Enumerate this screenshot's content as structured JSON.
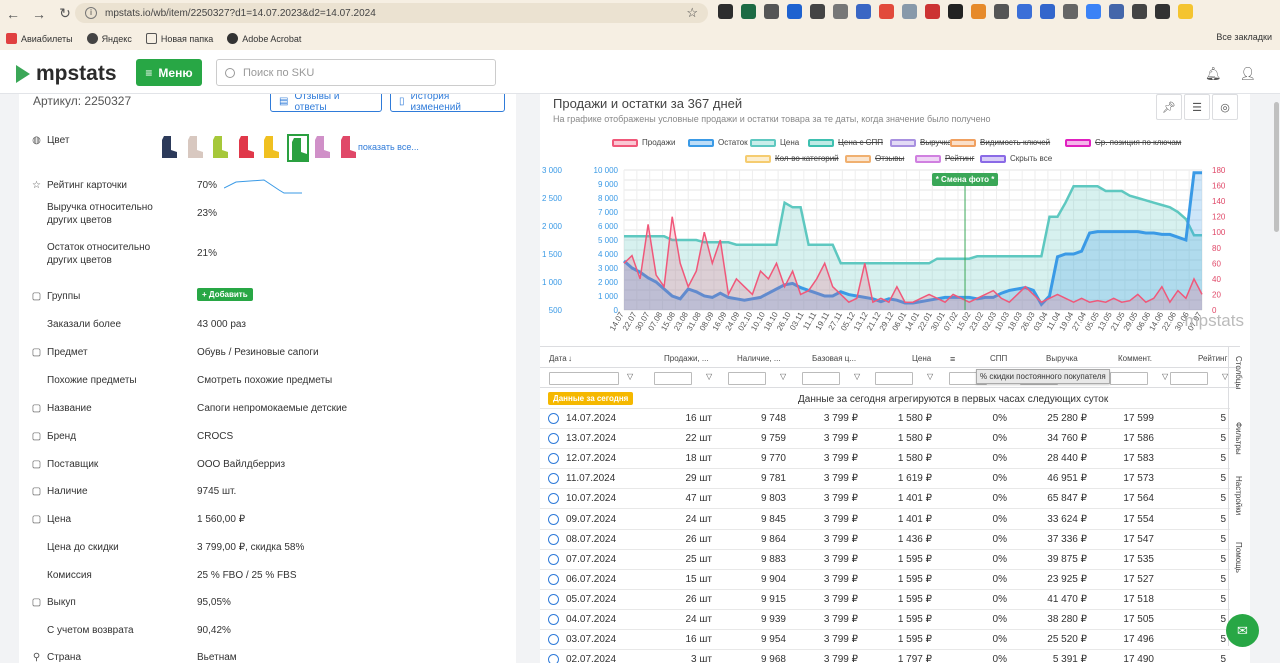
{
  "browser": {
    "url": "mpstats.io/wb/item/2250327?d1=14.07.2023&d2=14.07.2024",
    "bookmarks": [
      "Авиабилеты",
      "Яндекс",
      "Новая папка",
      "Adobe Acrobat"
    ],
    "all_bookmarks": "Все закладки"
  },
  "header": {
    "logo": "mpstats",
    "menu_label": "Меню",
    "search_placeholder": "Поиск по SKU"
  },
  "product": {
    "article": "Артикул: 2250327",
    "reviews_btn": "Отзывы и ответы",
    "history_btn": "История изменений",
    "color_label": "Цвет",
    "show_all": "показать все...",
    "rows": [
      {
        "label": "Рейтинг карточки",
        "value": "70%",
        "icon": "star-icon"
      },
      {
        "label": "Выручка относительно\nдругих цветов",
        "value": "23%"
      },
      {
        "label": "Остаток относительно\nдругих цветов",
        "value": "21%"
      },
      {
        "label": "Группы",
        "value": "+ Добавить",
        "icon": "layers-icon"
      },
      {
        "label": "Заказали более",
        "value": "43 000 раз"
      },
      {
        "label": "Предмет",
        "value": "Обувь / Резиновые сапоги",
        "icon": "box-icon"
      },
      {
        "label": "Похожие предметы",
        "value": "Смотреть похожие предметы"
      },
      {
        "label": "Название",
        "value": "Сапоги непромокаемые детские",
        "icon": "text-icon"
      },
      {
        "label": "Бренд",
        "value": "CROCS",
        "icon": "globe-icon"
      },
      {
        "label": "Поставщик",
        "value": "ООО Вайлдберриз",
        "icon": "truck-icon"
      },
      {
        "label": "Наличие",
        "value": "9745 шт.",
        "icon": "person-icon"
      },
      {
        "label": "Цена",
        "value": "1 560,00 ₽",
        "icon": "wallet-icon"
      },
      {
        "label": "Цена до скидки",
        "value": "3 799,00 ₽, скидка 58%"
      },
      {
        "label": "Комиссия",
        "value": "25 % FBO / 25 % FBS"
      },
      {
        "label": "Выкуп",
        "value": "95,05%",
        "icon": "cart-icon"
      },
      {
        "label": "С учетом возврата",
        "value": "90,42%"
      },
      {
        "label": "Страна",
        "value": "Вьетнам",
        "icon": "pin-icon"
      }
    ]
  },
  "chart": {
    "title": "Продажи и остатки за 367 дней",
    "subtitle": "На графике отображены условные продажи и остатки товара за те даты, когда значение было получено",
    "annotation": "* Смена фото *",
    "watermark": "mpstats",
    "legend": [
      {
        "name": "Продажи",
        "color": "#f0587a",
        "struck": false
      },
      {
        "name": "Остаток",
        "color": "#3a9ae6",
        "struck": false
      },
      {
        "name": "Цена",
        "color": "#5ec8c0",
        "struck": false
      },
      {
        "name": "Цена с СПП",
        "color": "#3ec0b0",
        "struck": true
      },
      {
        "name": "Выручка",
        "color": "#a890e0",
        "struck": true
      },
      {
        "name": "Видимость ключей",
        "color": "#f0a060",
        "struck": true
      },
      {
        "name": "Ср. позиция по ключам",
        "color": "#e020c0",
        "struck": true
      },
      {
        "name": "Кол-во категорий",
        "color": "#f5cc70",
        "struck": true
      },
      {
        "name": "Отзывы",
        "color": "#f0b070",
        "struck": true
      },
      {
        "name": "Рейтинг",
        "color": "#d080e0",
        "struck": true
      },
      {
        "name": "Скрыть все",
        "color": "#8a6ae6",
        "struck": false
      }
    ]
  },
  "chart_data": {
    "type": "line",
    "y_price_ticks": [
      "3 000",
      "2 500",
      "2 000",
      "1 500",
      "1 000",
      "500"
    ],
    "y_stock_ticks": [
      "10 000",
      "9 000",
      "8 000",
      "7 000",
      "6 000",
      "5 000",
      "4 000",
      "3 000",
      "2 000",
      "1 000",
      "0"
    ],
    "y_sales_ticks": [
      "180",
      "160",
      "140",
      "120",
      "100",
      "80",
      "60",
      "40",
      "20",
      "0"
    ],
    "x_ticks": [
      "14.07",
      "22.07",
      "30.07",
      "07.08",
      "15.08",
      "23.08",
      "31.08",
      "08.09",
      "16.09",
      "24.09",
      "02.10",
      "10.10",
      "18.10",
      "26.10",
      "03.11",
      "11.11",
      "19.11",
      "27.11",
      "05.12",
      "13.12",
      "21.12",
      "29.12",
      "06.01",
      "14.01",
      "22.01",
      "30.01",
      "07.02",
      "15.02",
      "23.02",
      "02.03",
      "10.03",
      "18.03",
      "26.03",
      "03.04",
      "11.04",
      "19.04",
      "27.04",
      "05.05",
      "13.05",
      "21.05",
      "29.05",
      "06.06",
      "14.06",
      "22.06",
      "30.06",
      "07.07"
    ],
    "ylim_stock": [
      0,
      10000
    ],
    "ylim_price": [
      500,
      3000
    ],
    "ylim_sales": [
      0,
      180
    ],
    "series": [
      {
        "name": "Цена",
        "values": [
          1580,
          1580,
          1580,
          1580,
          1580,
          1580,
          1500,
          1500,
          1500,
          1500,
          1450,
          1450,
          1450,
          1450,
          1400,
          1400,
          1400,
          1400,
          1400,
          1400,
          2300,
          2200,
          2200,
          1400,
          1400,
          1400,
          1400,
          1000,
          1000,
          1000,
          1000,
          1000,
          1000,
          1000,
          1000,
          1000,
          1000,
          1000,
          1000,
          1100,
          1100,
          1100,
          1100,
          1100,
          1150,
          1150,
          1150,
          1150,
          1150,
          1150,
          1150,
          1150,
          1150,
          2000,
          2000,
          2300,
          2650,
          2650,
          2650,
          2650,
          2550,
          2550,
          2550,
          2450,
          2400,
          2350,
          2300,
          2250,
          2200,
          2100,
          1950,
          1600,
          1600
        ]
      },
      {
        "name": "Остаток",
        "values": [
          3500,
          3000,
          2700,
          2300,
          2000,
          1500,
          1000,
          800,
          1500,
          1300,
          1000,
          900,
          1200,
          900,
          800,
          700,
          800,
          900,
          1200,
          1500,
          1800,
          1900,
          1600,
          1400,
          1200,
          1000,
          1000,
          1300,
          1100,
          1000,
          900,
          800,
          600,
          800,
          700,
          500,
          500,
          600,
          700,
          800,
          900,
          900,
          900,
          900,
          800,
          900,
          900,
          1200,
          1400,
          1500,
          1600,
          1400,
          400,
          1000,
          3800,
          4000,
          4000,
          4200,
          5500,
          5600,
          5600,
          5600,
          5600,
          5600,
          5600,
          5500,
          5500,
          5400,
          5400,
          5200,
          5000,
          9800,
          9800
        ]
      },
      {
        "name": "Продажи",
        "values": [
          60,
          70,
          40,
          110,
          45,
          30,
          120,
          60,
          30,
          50,
          100,
          60,
          90,
          20,
          40,
          30,
          20,
          50,
          40,
          60,
          30,
          50,
          20,
          25,
          40,
          60,
          30,
          20,
          10,
          15,
          60,
          10,
          15,
          10,
          30,
          10,
          10,
          15,
          20,
          15,
          10,
          20,
          15,
          10,
          15,
          20,
          25,
          15,
          10,
          20,
          30,
          20,
          10,
          15,
          20,
          15,
          10,
          15,
          10,
          12,
          10,
          15,
          10,
          12,
          20,
          10,
          15,
          30,
          10,
          25,
          15,
          40,
          20
        ]
      }
    ]
  },
  "table": {
    "headers": [
      "Дата",
      "Продажи, ...",
      "Наличие, ...",
      "Базовая ц...",
      "Цена",
      "СПП",
      "Выручка",
      "Коммент.",
      "Рейтинг"
    ],
    "tooltip": "% скидки постоянного покупателя",
    "today_tag": "Данные за сегодня",
    "today_text": "Данные за сегодня агрегируются в первых часах следующих суток",
    "side_tabs": [
      "Столбцы",
      "Фильтры",
      "Настройки",
      "Помощь"
    ],
    "rows": [
      [
        "14.07.2024",
        "16 шт",
        "9 748",
        "3 799 ₽",
        "1 580 ₽",
        "0%",
        "25 280 ₽",
        "17 599",
        "5"
      ],
      [
        "13.07.2024",
        "22 шт",
        "9 759",
        "3 799 ₽",
        "1 580 ₽",
        "0%",
        "34 760 ₽",
        "17 586",
        "5"
      ],
      [
        "12.07.2024",
        "18 шт",
        "9 770",
        "3 799 ₽",
        "1 580 ₽",
        "0%",
        "28 440 ₽",
        "17 583",
        "5"
      ],
      [
        "11.07.2024",
        "29 шт",
        "9 781",
        "3 799 ₽",
        "1 619 ₽",
        "0%",
        "46 951 ₽",
        "17 573",
        "5"
      ],
      [
        "10.07.2024",
        "47 шт",
        "9 803",
        "3 799 ₽",
        "1 401 ₽",
        "0%",
        "65 847 ₽",
        "17 564",
        "5"
      ],
      [
        "09.07.2024",
        "24 шт",
        "9 845",
        "3 799 ₽",
        "1 401 ₽",
        "0%",
        "33 624 ₽",
        "17 554",
        "5"
      ],
      [
        "08.07.2024",
        "26 шт",
        "9 864",
        "3 799 ₽",
        "1 436 ₽",
        "0%",
        "37 336 ₽",
        "17 547",
        "5"
      ],
      [
        "07.07.2024",
        "25 шт",
        "9 883",
        "3 799 ₽",
        "1 595 ₽",
        "0%",
        "39 875 ₽",
        "17 535",
        "5"
      ],
      [
        "06.07.2024",
        "15 шт",
        "9 904",
        "3 799 ₽",
        "1 595 ₽",
        "0%",
        "23 925 ₽",
        "17 527",
        "5"
      ],
      [
        "05.07.2024",
        "26 шт",
        "9 915",
        "3 799 ₽",
        "1 595 ₽",
        "0%",
        "41 470 ₽",
        "17 518",
        "5"
      ],
      [
        "04.07.2024",
        "24 шт",
        "9 939",
        "3 799 ₽",
        "1 595 ₽",
        "0%",
        "38 280 ₽",
        "17 505",
        "5"
      ],
      [
        "03.07.2024",
        "16 шт",
        "9 954",
        "3 799 ₽",
        "1 595 ₽",
        "0%",
        "25 520 ₽",
        "17 496",
        "5"
      ],
      [
        "02.07.2024",
        "3 шт",
        "9 968",
        "3 799 ₽",
        "1 797 ₽",
        "0%",
        "5 391 ₽",
        "17 490",
        "5"
      ]
    ]
  }
}
